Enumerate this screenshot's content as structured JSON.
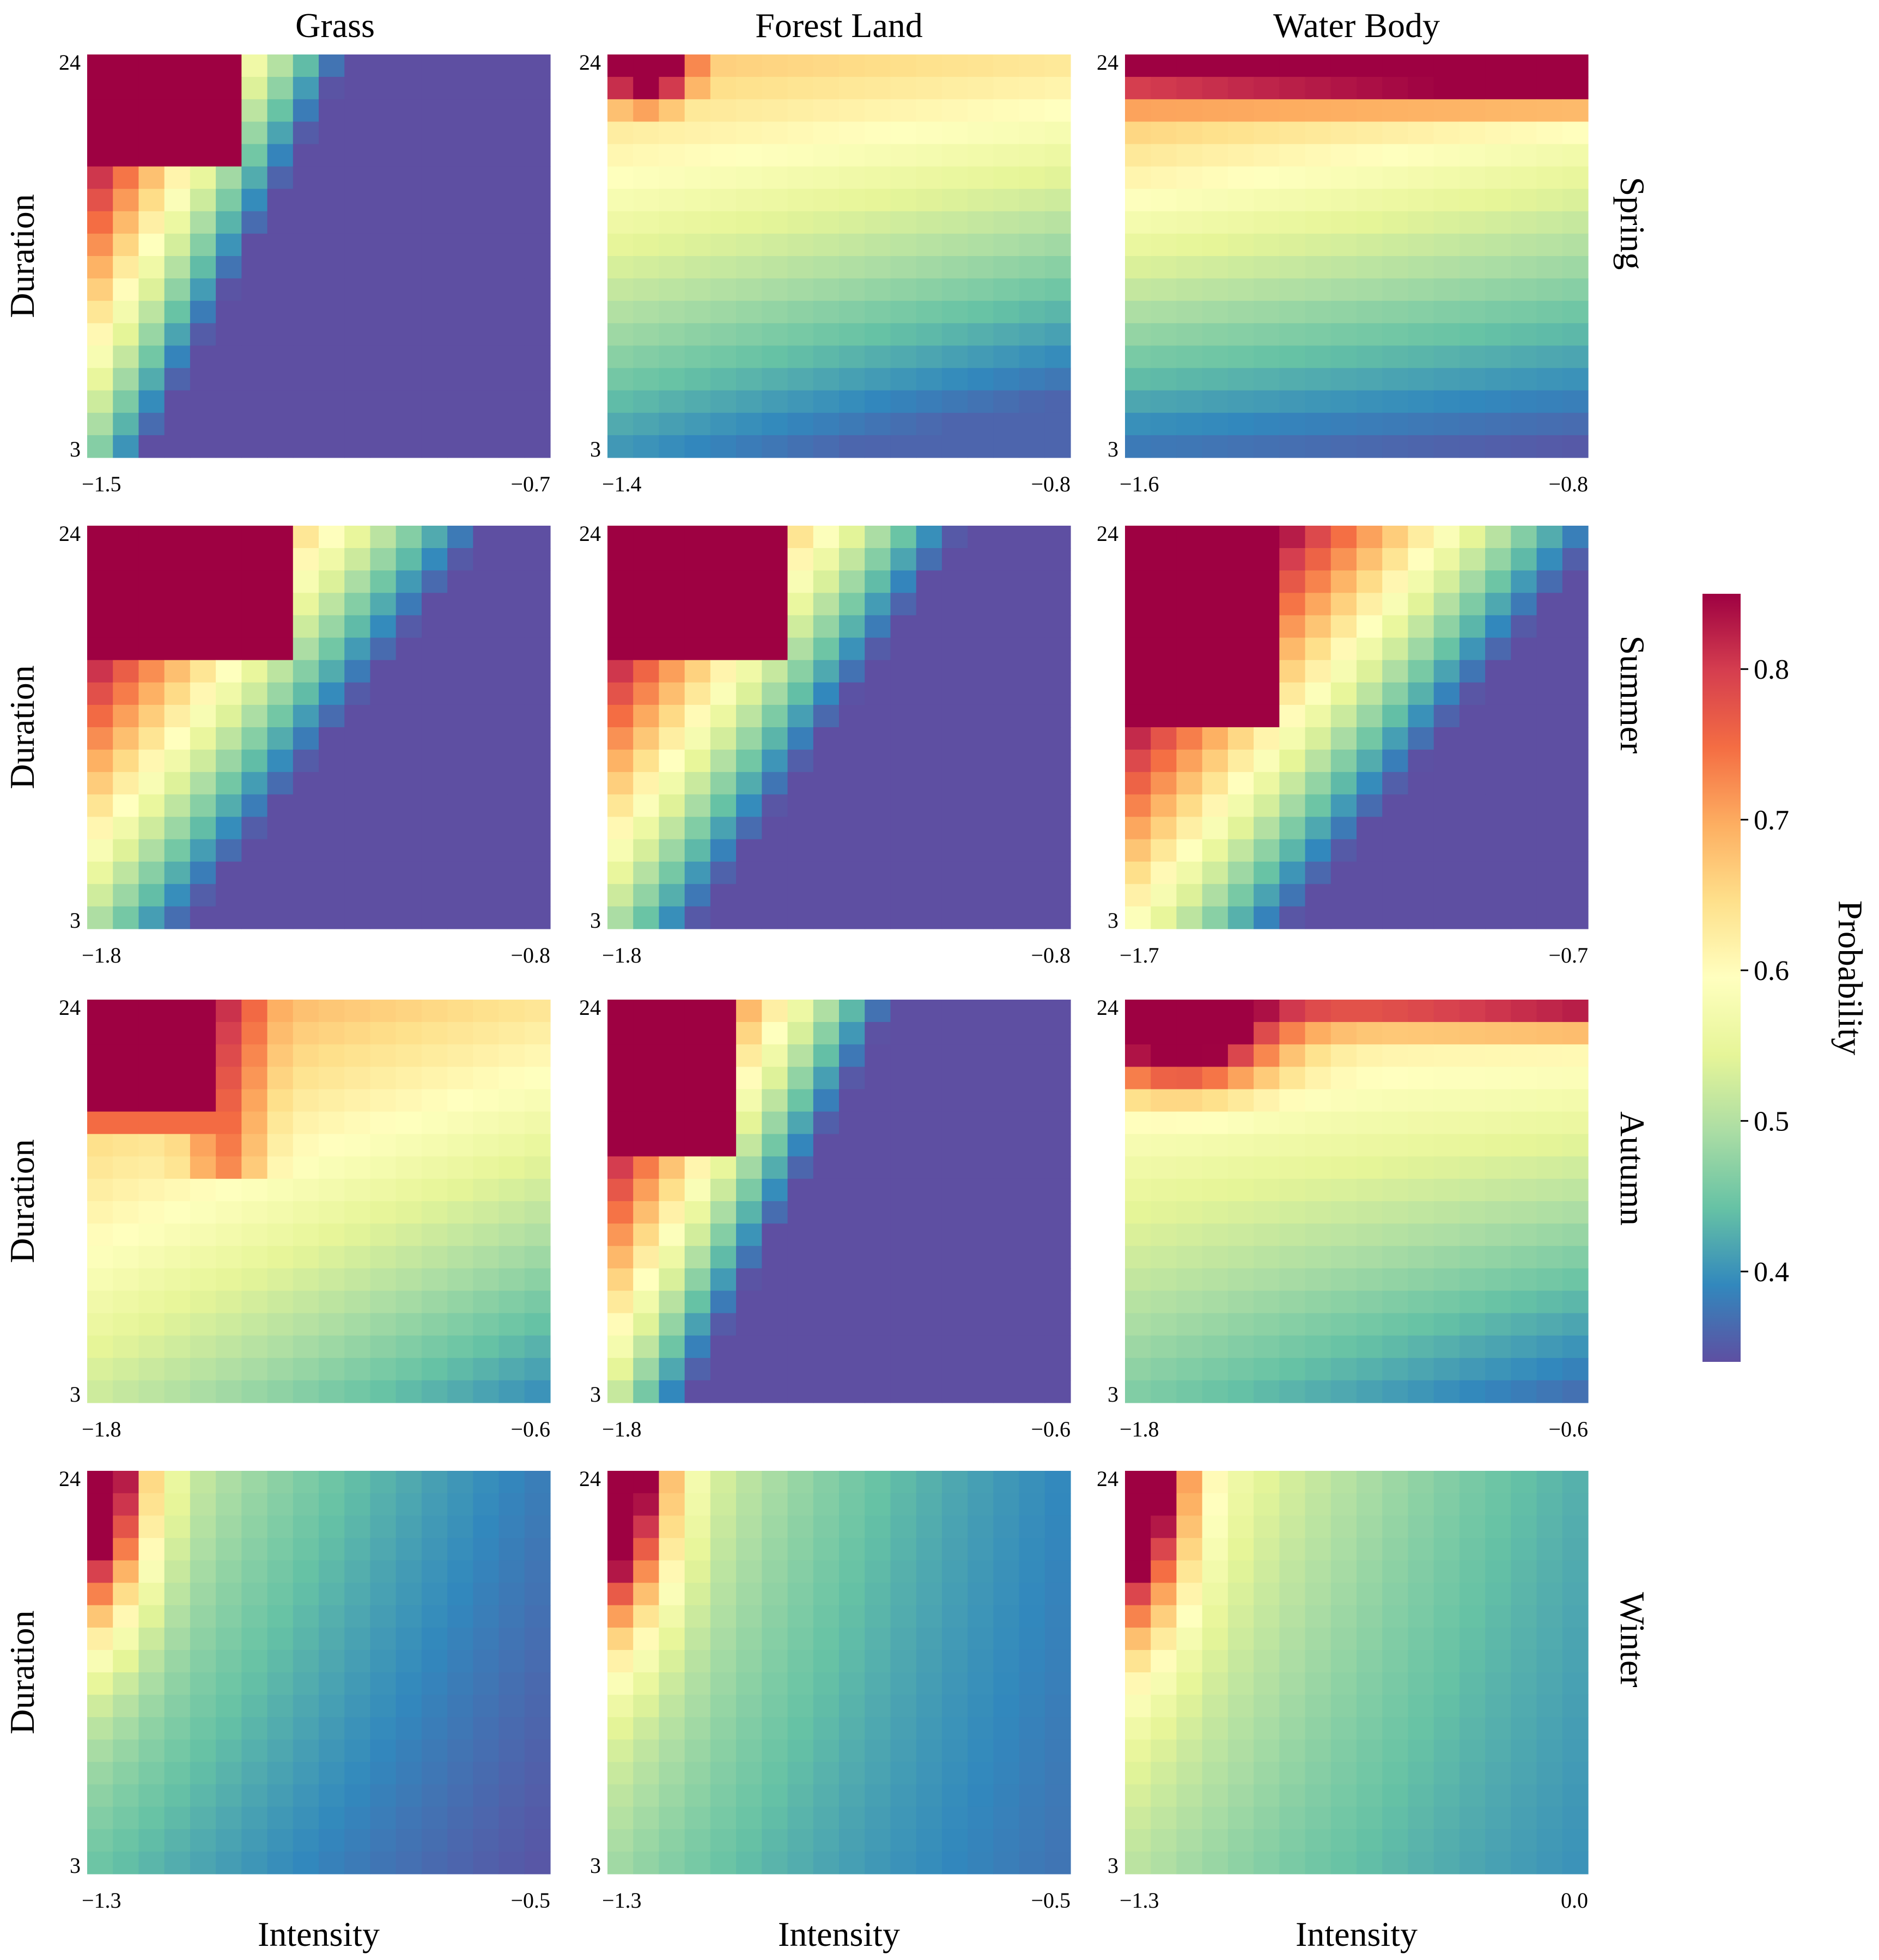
{
  "chart_data": {
    "type": "heatmap",
    "grid_rows": 4,
    "grid_cols": 3,
    "column_titles": [
      "Grass",
      "Forest Land",
      "Water Body"
    ],
    "row_labels": [
      "Spring",
      "Summer",
      "Autumn",
      "Winter"
    ],
    "y_axis_label": "Duration",
    "x_axis_label": "Intensity",
    "x_axis_label_rows": [
      3
    ],
    "cells_per_panel": [
      18,
      18
    ],
    "colorbar": {
      "label": "Probability",
      "min": 0.34,
      "max": 0.85,
      "ticks": [
        "0.4",
        "0.5",
        "0.6",
        "0.7",
        "0.8"
      ],
      "colormap": "Spectral_r",
      "colors": [
        "#5e4fa2",
        "#3288bd",
        "#66c2a5",
        "#abdda4",
        "#e6f598",
        "#ffffbf",
        "#fee08b",
        "#fdae61",
        "#f46d43",
        "#d53e4f",
        "#9e0142"
      ]
    },
    "panels": [
      {
        "row": 0,
        "col": 0,
        "y_ticks": [
          "24",
          "3"
        ],
        "x_ticks": [
          "−1.5",
          "−0.7"
        ],
        "pattern": "diag",
        "params": {
          "tx": 0.32,
          "ty": 0.72,
          "w": 0.3,
          "ex": 0.75,
          "ey": 0.8
        }
      },
      {
        "row": 0,
        "col": 1,
        "y_ticks": [
          "24",
          "3"
        ],
        "x_ticks": [
          "−1.4",
          "−0.8"
        ],
        "pattern": "forest_spring",
        "params": {}
      },
      {
        "row": 0,
        "col": 2,
        "y_ticks": [
          "24",
          "3"
        ],
        "x_ticks": [
          "−1.6",
          "−0.8"
        ],
        "pattern": "water_spring",
        "params": {}
      },
      {
        "row": 1,
        "col": 0,
        "y_ticks": [
          "24",
          "3"
        ],
        "x_ticks": [
          "−1.8",
          "−0.8"
        ],
        "pattern": "diag",
        "params": {
          "tx": 0.45,
          "ty": 0.68,
          "w": 0.3,
          "ex": 0.85,
          "ey": 0.75
        }
      },
      {
        "row": 1,
        "col": 1,
        "y_ticks": [
          "24",
          "3"
        ],
        "x_ticks": [
          "−1.8",
          "−0.8"
        ],
        "pattern": "diag",
        "params": {
          "tx": 0.4,
          "ty": 0.68,
          "w": 0.3,
          "ex": 0.85,
          "ey": 0.75
        }
      },
      {
        "row": 1,
        "col": 2,
        "y_ticks": [
          "24",
          "3"
        ],
        "x_ticks": [
          "−1.7",
          "−0.7"
        ],
        "pattern": "diag",
        "params": {
          "tx": 0.35,
          "ty": 0.5,
          "w": 0.32,
          "ex": 0.95,
          "ey": 0.8
        }
      },
      {
        "row": 2,
        "col": 0,
        "y_ticks": [
          "24",
          "3"
        ],
        "x_ticks": [
          "−1.8",
          "−0.6"
        ],
        "pattern": "grass_autumn",
        "params": {}
      },
      {
        "row": 2,
        "col": 1,
        "y_ticks": [
          "24",
          "3"
        ],
        "x_ticks": [
          "−1.8",
          "−0.6"
        ],
        "pattern": "diag",
        "params": {
          "tx": 0.28,
          "ty": 0.62,
          "w": 0.35,
          "ex": 0.65,
          "ey": 0.6
        }
      },
      {
        "row": 2,
        "col": 2,
        "y_ticks": [
          "24",
          "3"
        ],
        "x_ticks": [
          "−1.8",
          "−0.6"
        ],
        "pattern": "water_autumn",
        "params": {}
      },
      {
        "row": 3,
        "col": 0,
        "y_ticks": [
          "24",
          "3"
        ],
        "x_ticks": [
          "−1.3",
          "−0.5"
        ],
        "pattern": "winter",
        "params": {
          "k": 1.3,
          "base": 0.36
        }
      },
      {
        "row": 3,
        "col": 1,
        "y_ticks": [
          "24",
          "3"
        ],
        "x_ticks": [
          "−1.3",
          "−0.5"
        ],
        "pattern": "winter",
        "params": {
          "k": 2.0,
          "base": 0.4
        }
      },
      {
        "row": 3,
        "col": 2,
        "y_ticks": [
          "24",
          "3"
        ],
        "x_ticks": [
          "−1.3",
          "0.0"
        ],
        "pattern": "winter",
        "params": {
          "k": 1.6,
          "base": 0.42
        }
      }
    ]
  }
}
